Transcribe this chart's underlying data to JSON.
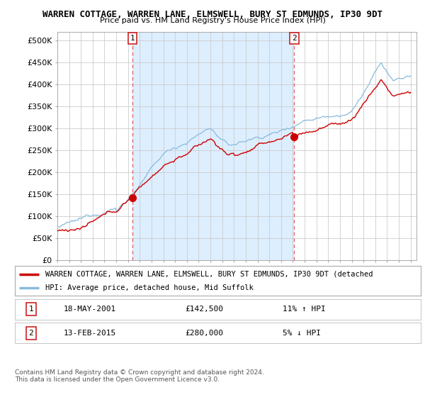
{
  "title": "WARREN COTTAGE, WARREN LANE, ELMSWELL, BURY ST EDMUNDS, IP30 9DT",
  "subtitle": "Price paid vs. HM Land Registry's House Price Index (HPI)",
  "bg_color": "#ffffff",
  "plot_bg_color": "#ffffff",
  "band_color": "#ddeeff",
  "grid_color": "#cccccc",
  "y_ticks": [
    0,
    50000,
    100000,
    150000,
    200000,
    250000,
    300000,
    350000,
    400000,
    450000,
    500000
  ],
  "y_labels": [
    "£0",
    "£50K",
    "£100K",
    "£150K",
    "£200K",
    "£250K",
    "£300K",
    "£350K",
    "£400K",
    "£450K",
    "£500K"
  ],
  "sale1_x": 2001.375,
  "sale1_y": 142500,
  "sale1_label": "1",
  "sale1_date": "18-MAY-2001",
  "sale1_price": "£142,500",
  "sale1_hpi": "11% ↑ HPI",
  "sale2_x": 2015.12,
  "sale2_y": 280000,
  "sale2_label": "2",
  "sale2_date": "13-FEB-2015",
  "sale2_price": "£280,000",
  "sale2_hpi": "5% ↓ HPI",
  "line_red_color": "#cc0000",
  "line_blue_color": "#88bbdd",
  "vline_color": "#dd4444",
  "legend_red_label": "WARREN COTTAGE, WARREN LANE, ELMSWELL, BURY ST EDMUNDS, IP30 9DT (detached",
  "legend_blue_label": "HPI: Average price, detached house, Mid Suffolk",
  "footer": "Contains HM Land Registry data © Crown copyright and database right 2024.\nThis data is licensed under the Open Government Licence v3.0.",
  "ylim": [
    0,
    520000
  ],
  "xlim_start": 1995.0,
  "xlim_end": 2025.5
}
